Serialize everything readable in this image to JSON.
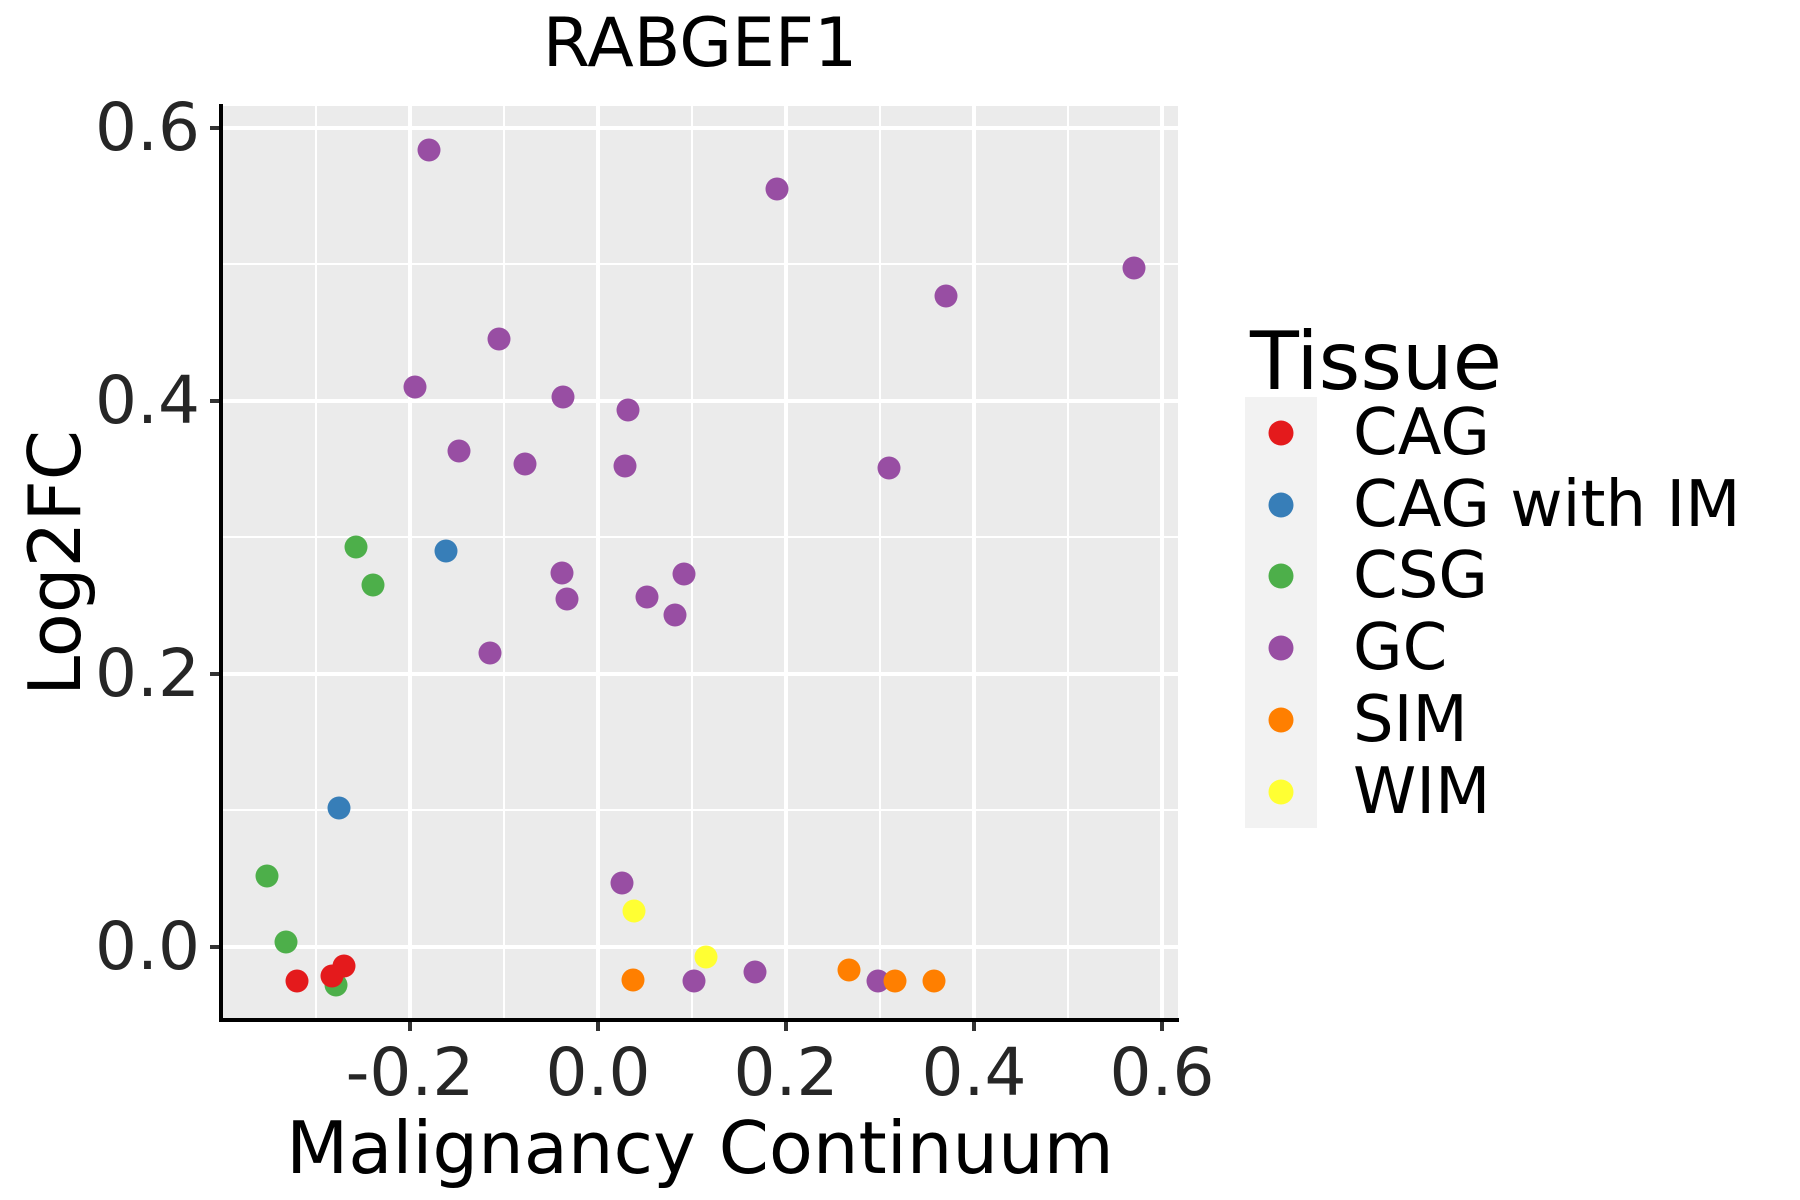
{
  "title": "RABGEF1",
  "chart_data": {
    "type": "scatter",
    "title": "RABGEF1",
    "xlabel": "Malignancy Continuum",
    "ylabel": "Log2FC",
    "xlim": [
      -0.4,
      0.617
    ],
    "ylim": [
      -0.0535,
      0.616
    ],
    "x_ticks": [
      {
        "value": -0.2,
        "label": "-0.2"
      },
      {
        "value": 0.0,
        "label": "0.0"
      },
      {
        "value": 0.2,
        "label": "0.2"
      },
      {
        "value": 0.4,
        "label": "0.4"
      },
      {
        "value": 0.6,
        "label": "0.6"
      }
    ],
    "y_ticks": [
      {
        "value": 0.0,
        "label": "0.0"
      },
      {
        "value": 0.2,
        "label": "0.2"
      },
      {
        "value": 0.4,
        "label": "0.4"
      },
      {
        "value": 0.6,
        "label": "0.6"
      }
    ],
    "x_minor": [
      -0.3,
      -0.1,
      0.1,
      0.3,
      0.5
    ],
    "y_minor": [
      0.1,
      0.3,
      0.5
    ],
    "grid": true,
    "panel_bg": "#ebebeb",
    "grid_color": "#ffffff",
    "legend_title": "Tissue",
    "legend_position": "right",
    "legend_key_bg": "#f2f2f2",
    "series": [
      {
        "name": "CAG",
        "color": "#e41a1c",
        "z": 6,
        "points": [
          [
            -0.32,
            -0.025
          ],
          [
            -0.283,
            -0.021
          ],
          [
            -0.27,
            -0.014
          ]
        ]
      },
      {
        "name": "CAG with IM",
        "color": "#377eb8",
        "z": 2,
        "points": [
          [
            -0.162,
            0.29
          ],
          [
            -0.276,
            0.102
          ]
        ]
      },
      {
        "name": "CSG",
        "color": "#4daf4a",
        "z": 1,
        "points": [
          [
            -0.257,
            0.293
          ],
          [
            -0.239,
            0.265
          ],
          [
            -0.352,
            0.052
          ],
          [
            -0.332,
            0.004
          ],
          [
            -0.279,
            -0.028
          ]
        ]
      },
      {
        "name": "GC",
        "color": "#984ea3",
        "z": 3,
        "points": [
          [
            -0.18,
            0.584
          ],
          [
            0.19,
            0.555
          ],
          [
            0.57,
            0.497
          ],
          [
            0.37,
            0.477
          ],
          [
            -0.105,
            0.445
          ],
          [
            -0.195,
            0.41
          ],
          [
            -0.037,
            0.403
          ],
          [
            0.032,
            0.393
          ],
          [
            -0.148,
            0.363
          ],
          [
            -0.078,
            0.354
          ],
          [
            0.029,
            0.352
          ],
          [
            0.31,
            0.351
          ],
          [
            0.091,
            0.273
          ],
          [
            -0.038,
            0.274
          ],
          [
            0.052,
            0.256
          ],
          [
            -0.033,
            0.255
          ],
          [
            0.082,
            0.243
          ],
          [
            -0.115,
            0.215
          ],
          [
            0.026,
            0.047
          ],
          [
            0.102,
            -0.025
          ],
          [
            0.167,
            -0.018
          ],
          [
            0.298,
            -0.025
          ]
        ]
      },
      {
        "name": "SIM",
        "color": "#ff7f00",
        "z": 4,
        "points": [
          [
            0.037,
            -0.024
          ],
          [
            0.267,
            -0.017
          ],
          [
            0.316,
            -0.025
          ],
          [
            0.357,
            -0.025
          ]
        ]
      },
      {
        "name": "WIM",
        "color": "#ffff33",
        "z": 5,
        "points": [
          [
            0.038,
            0.026
          ],
          [
            0.115,
            -0.007
          ]
        ]
      }
    ]
  }
}
